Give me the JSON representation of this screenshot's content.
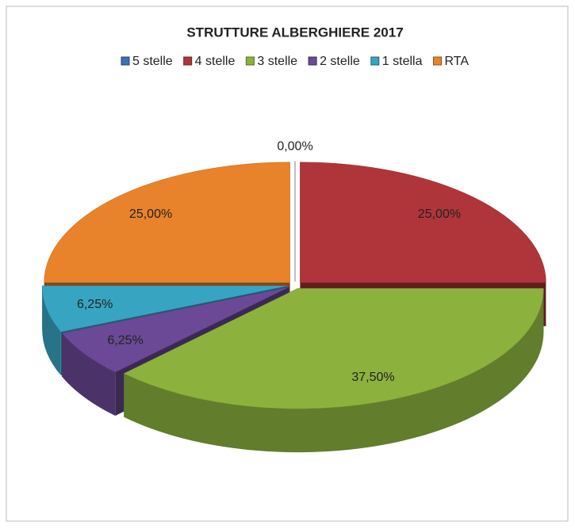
{
  "chart_data": {
    "type": "pie3d",
    "title": "STRUTTURE ALBERGHIERE 2017",
    "categories": [
      "5 stelle",
      "4 stelle",
      "3 stelle",
      "2 stelle",
      "1 stella",
      "RTA"
    ],
    "values": [
      0,
      25,
      37.5,
      6.25,
      6.25,
      25
    ],
    "value_labels": [
      "0,00%",
      "25,00%",
      "37,50%",
      "6,25%",
      "6,25%",
      "25,00%"
    ],
    "colors": [
      "#3f6fb8",
      "#b0353a",
      "#8cb23d",
      "#6b4996",
      "#37a5c2",
      "#e8832b"
    ],
    "legend": "top"
  }
}
